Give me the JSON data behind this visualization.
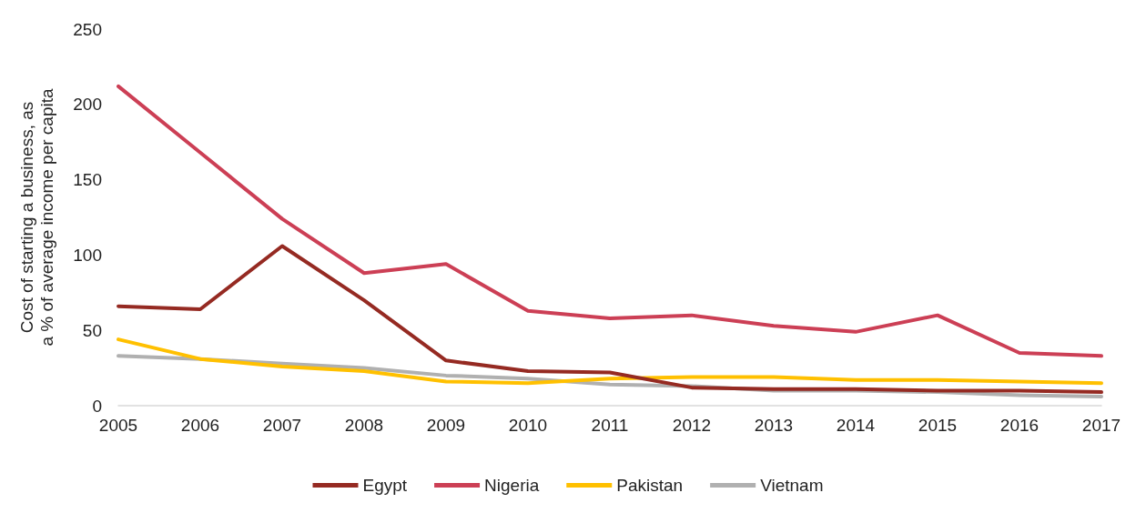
{
  "chart_data": {
    "type": "line",
    "ylabel": "Cost of starting a business, as a % of average income per capita",
    "categories": [
      "2005",
      "2006",
      "2007",
      "2008",
      "2009",
      "2010",
      "2011",
      "2012",
      "2013",
      "2014",
      "2015",
      "2016",
      "2017"
    ],
    "series": [
      {
        "name": "Egypt",
        "color": "#952a22",
        "values": [
          66,
          64,
          106,
          70,
          30,
          23,
          22,
          12,
          11,
          11,
          10,
          10,
          9
        ]
      },
      {
        "name": "Nigeria",
        "color": "#cc3f55",
        "values": [
          212,
          168,
          124,
          88,
          94,
          63,
          58,
          60,
          53,
          49,
          60,
          35,
          33
        ]
      },
      {
        "name": "Pakistan",
        "color": "#ffc000",
        "values": [
          44,
          31,
          26,
          23,
          16,
          15,
          18,
          19,
          19,
          17,
          17,
          16,
          15
        ]
      },
      {
        "name": "Vietnam",
        "color": "#b0b0b0",
        "values": [
          33,
          31,
          28,
          25,
          20,
          18,
          14,
          13,
          10,
          10,
          9,
          7,
          6
        ]
      }
    ],
    "ylim": [
      0,
      250
    ],
    "yticks": [
      0,
      50,
      100,
      150,
      200,
      250
    ],
    "grid": false,
    "legend": "bottom",
    "marker": "none",
    "line_style": "solid"
  }
}
